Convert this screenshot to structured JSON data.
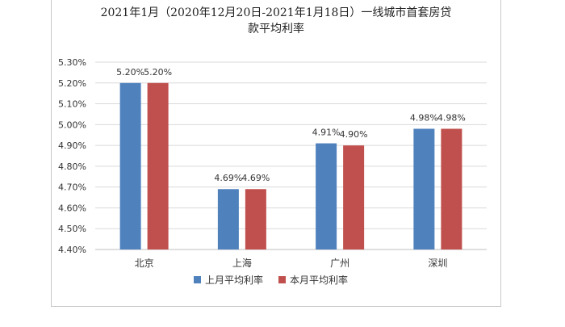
{
  "chart_data": {
    "type": "bar",
    "title_line1": "2021年1月（2020年12月20日-2021年1月18日）一线城市首套房贷",
    "title_line2": "款平均利率",
    "categories": [
      "北京",
      "上海",
      "广州",
      "深圳"
    ],
    "series": [
      {
        "name": "上月平均利率",
        "values": [
          5.2,
          4.69,
          4.91,
          4.98
        ],
        "labels": [
          "5.20%",
          "4.69%",
          "4.91%",
          "4.98%"
        ],
        "color": "#4f81bd"
      },
      {
        "name": "本月平均利率",
        "values": [
          5.2,
          4.69,
          4.9,
          4.98
        ],
        "labels": [
          "5.20%",
          "4.69%",
          "4.90%",
          "4.98%"
        ],
        "color": "#c0504d"
      }
    ],
    "ylim": [
      4.4,
      5.3
    ],
    "yticks": [
      "4.40%",
      "4.50%",
      "4.60%",
      "4.70%",
      "4.80%",
      "4.90%",
      "5.00%",
      "5.10%",
      "5.20%",
      "5.30%"
    ],
    "grid": true,
    "legend": "bottom"
  }
}
